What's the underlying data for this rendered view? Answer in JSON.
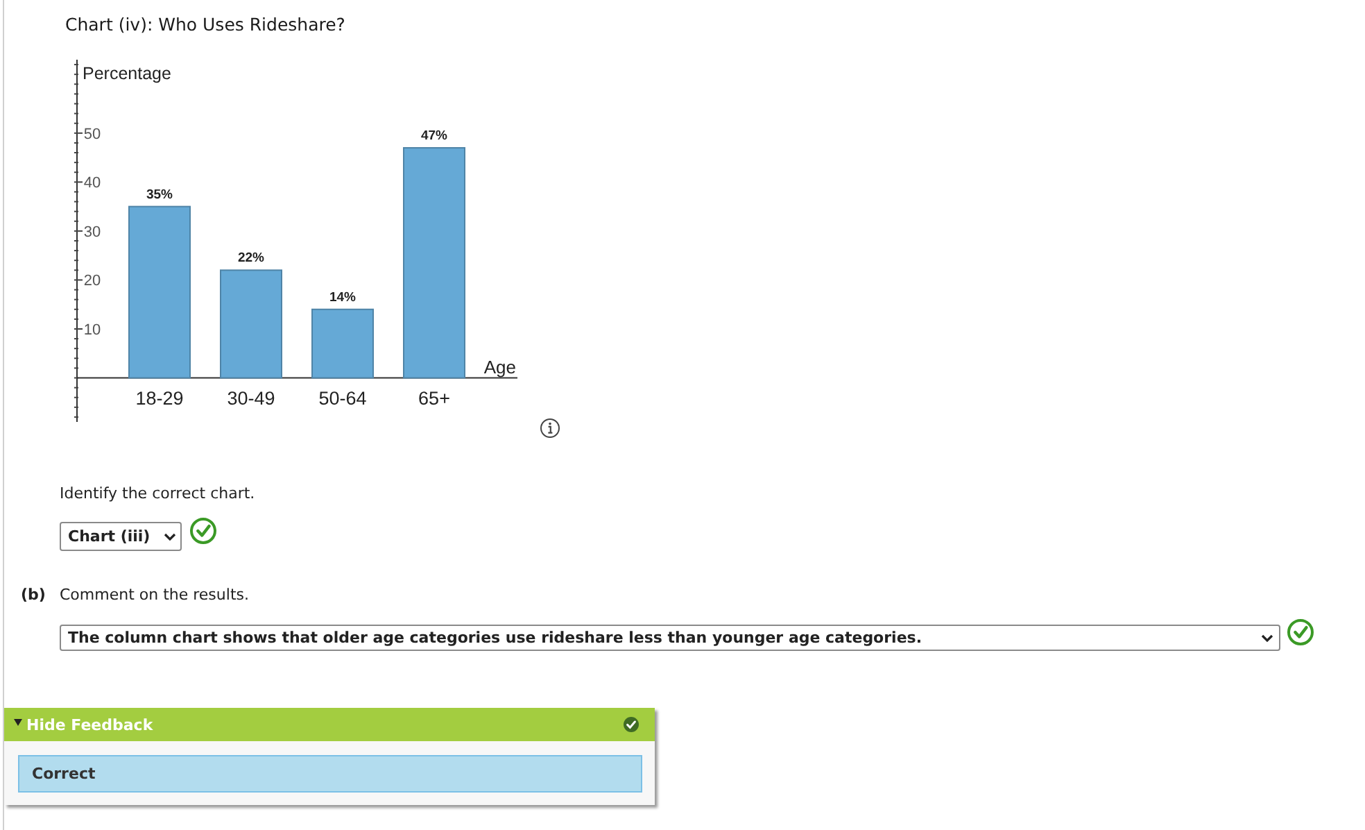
{
  "chart_data": {
    "type": "bar",
    "title": "Chart (iv): Who Uses Rideshare?",
    "xlabel": "Age",
    "ylabel": "Percentage",
    "categories": [
      "18-29",
      "30-49",
      "50-64",
      "65+"
    ],
    "values": [
      35,
      22,
      14,
      47
    ],
    "value_labels": [
      "35%",
      "22%",
      "14%",
      "47%"
    ],
    "color": "#65a9d6",
    "ylim": [
      -9,
      65
    ],
    "yticks": [
      {
        "value": -8,
        "label": null
      },
      {
        "value": -6,
        "label": null
      },
      {
        "value": -4,
        "label": null
      },
      {
        "value": -2,
        "label": null
      },
      {
        "value": 0,
        "label": null
      },
      {
        "value": 2,
        "label": null
      },
      {
        "value": 4,
        "label": null
      },
      {
        "value": 6,
        "label": null
      },
      {
        "value": 8,
        "label": null
      },
      10,
      {
        "value": 12,
        "label": null
      },
      {
        "value": 14,
        "label": null
      },
      {
        "value": 16,
        "label": null
      },
      {
        "value": 18,
        "label": null
      },
      20,
      {
        "value": 22,
        "label": null
      },
      {
        "value": 24,
        "label": null
      },
      {
        "value": 26,
        "label": null
      },
      {
        "value": 28,
        "label": null
      },
      30,
      {
        "value": 32,
        "label": null
      },
      {
        "value": 34,
        "label": null
      },
      {
        "value": 36,
        "label": null
      },
      {
        "value": 38,
        "label": null
      },
      40,
      {
        "value": 42,
        "label": null
      },
      {
        "value": 44,
        "label": null
      },
      {
        "value": 46,
        "label": null
      },
      {
        "value": 48,
        "label": null
      },
      50,
      {
        "value": 52,
        "label": null
      },
      {
        "value": 54,
        "label": null
      },
      {
        "value": 56,
        "label": null
      },
      {
        "value": 58,
        "label": null
      },
      {
        "value": 60,
        "label": null
      },
      {
        "value": 62,
        "label": null
      },
      {
        "value": 64,
        "label": null
      }
    ],
    "annotations": [
      "Identify the correct chart.",
      "Chart (iii)",
      "(b)",
      "Comment on the results.",
      "The column chart shows that older age categories use rideshare less than younger age categories.",
      "Hide Feedback",
      "Correct"
    ]
  }
}
